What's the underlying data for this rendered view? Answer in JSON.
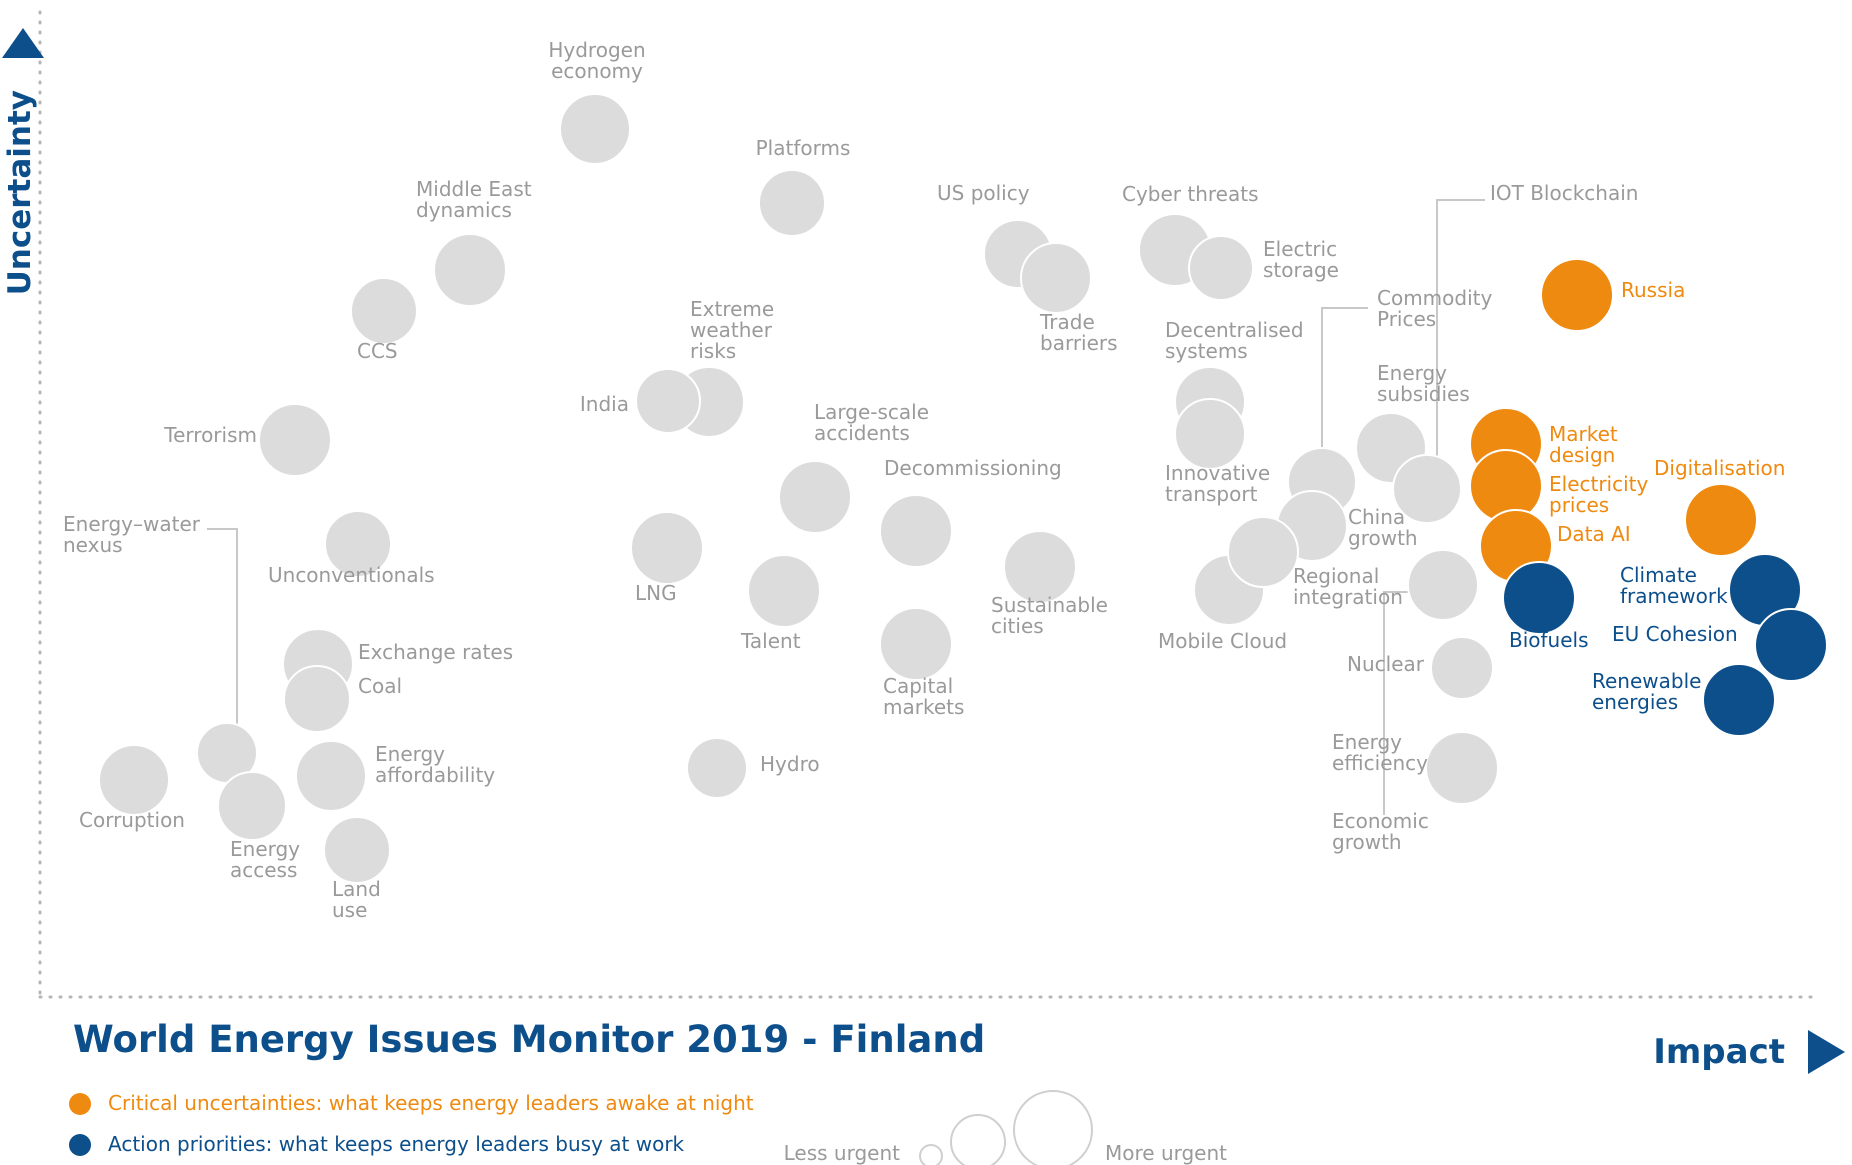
{
  "chart_data": {
    "type": "scatter",
    "title": "World Energy Issues Monitor 2019 - Finland",
    "xlabel": "Impact",
    "ylabel": "Uncertainty",
    "grid": false,
    "colors": {
      "grey": "#dcdcdc",
      "orange": "#ef8a10",
      "blue": "#0d4f8b",
      "text_grey": "#9a9a9a",
      "title": "#0d4f8b"
    },
    "legend": {
      "critical": "Critical uncertainties: what keeps energy leaders awake at night",
      "action": "Action priorities: what keeps energy leaders busy at work",
      "less_urgent": "Less urgent",
      "more_urgent": "More urgent"
    },
    "issues": [
      {
        "name": "Hydrogen economy",
        "label": [
          "Hydrogen",
          "economy"
        ],
        "impact": 595,
        "uncertainty": 129,
        "urgency": 35,
        "group": "grey"
      },
      {
        "name": "Platforms",
        "label": [
          "Platforms"
        ],
        "impact": 792,
        "uncertainty": 203,
        "urgency": 33,
        "group": "grey"
      },
      {
        "name": "US policy",
        "label": [
          "US policy"
        ],
        "impact": 1018,
        "uncertainty": 254,
        "urgency": 34,
        "group": "grey"
      },
      {
        "name": "Trade barriers",
        "label": [
          "Trade",
          "barriers"
        ],
        "impact": 1056,
        "uncertainty": 278,
        "urgency": 35,
        "group": "grey"
      },
      {
        "name": "Cyber threats",
        "label": [
          "Cyber threats"
        ],
        "impact": 1175,
        "uncertainty": 250,
        "urgency": 36,
        "group": "grey"
      },
      {
        "name": "Electric storage",
        "label": [
          "Electric",
          "storage"
        ],
        "impact": 1221,
        "uncertainty": 268,
        "urgency": 32,
        "group": "grey"
      },
      {
        "name": "Middle East dynamics",
        "label": [
          "Middle East",
          "dynamics"
        ],
        "impact": 470,
        "uncertainty": 270,
        "urgency": 36,
        "group": "grey"
      },
      {
        "name": "CCS",
        "label": [
          "CCS"
        ],
        "impact": 384,
        "uncertainty": 311,
        "urgency": 33,
        "group": "grey"
      },
      {
        "name": "Extreme weather risks",
        "label": [
          "Extreme",
          "weather",
          "risks"
        ],
        "impact": 709,
        "uncertainty": 402,
        "urgency": 35,
        "group": "grey"
      },
      {
        "name": "India",
        "label": [
          "India"
        ],
        "impact": 668,
        "uncertainty": 401,
        "urgency": 32,
        "group": "grey"
      },
      {
        "name": "Decentralised systems",
        "label": [
          "Decentralised",
          "systems"
        ],
        "impact": 1210,
        "uncertainty": 402,
        "urgency": 35,
        "group": "grey"
      },
      {
        "name": "Innovative transport",
        "label": [
          "Innovative",
          "transport"
        ],
        "impact": 1210,
        "uncertainty": 434,
        "urgency": 35,
        "group": "grey"
      },
      {
        "name": "Terrorism",
        "label": [
          "Terrorism"
        ],
        "impact": 295,
        "uncertainty": 440,
        "urgency": 36,
        "group": "grey"
      },
      {
        "name": "Large-scale accidents",
        "label": [
          "Large-scale",
          "accidents"
        ],
        "impact": 815,
        "uncertainty": 497,
        "urgency": 36,
        "group": "grey"
      },
      {
        "name": "Decommissioning",
        "label": [
          "Decommissioning"
        ],
        "impact": 916,
        "uncertainty": 531,
        "urgency": 36,
        "group": "grey"
      },
      {
        "name": "Unconventionals",
        "label": [
          "Unconventionals"
        ],
        "impact": 358,
        "uncertainty": 544,
        "urgency": 33,
        "group": "grey"
      },
      {
        "name": "LNG",
        "label": [
          "LNG"
        ],
        "impact": 667,
        "uncertainty": 548,
        "urgency": 36,
        "group": "grey"
      },
      {
        "name": "Talent",
        "label": [
          "Talent"
        ],
        "impact": 784,
        "uncertainty": 591,
        "urgency": 36,
        "group": "grey"
      },
      {
        "name": "Sustainable cities",
        "label": [
          "Sustainable",
          "cities"
        ],
        "impact": 1040,
        "uncertainty": 567,
        "urgency": 36,
        "group": "grey"
      },
      {
        "name": "Capital markets",
        "label": [
          "Capital",
          "markets"
        ],
        "impact": 916,
        "uncertainty": 644,
        "urgency": 36,
        "group": "grey"
      },
      {
        "name": "Exchange rates",
        "label": [
          "Exchange rates"
        ],
        "impact": 318,
        "uncertainty": 664,
        "urgency": 35,
        "group": "grey"
      },
      {
        "name": "Coal",
        "label": [
          "Coal"
        ],
        "impact": 317,
        "uncertainty": 699,
        "urgency": 33,
        "group": "grey"
      },
      {
        "name": "Energy-water nexus",
        "label": [
          "Energy–water",
          "nexus"
        ],
        "impact": 227,
        "uncertainty": 753,
        "urgency": 30,
        "group": "grey"
      },
      {
        "name": "Energy affordability",
        "label": [
          "Energy",
          "affordability"
        ],
        "impact": 331,
        "uncertainty": 776,
        "urgency": 35,
        "group": "grey"
      },
      {
        "name": "Corruption",
        "label": [
          "Corruption"
        ],
        "impact": 134,
        "uncertainty": 780,
        "urgency": 35,
        "group": "grey"
      },
      {
        "name": "Energy access",
        "label": [
          "Energy",
          "access"
        ],
        "impact": 252,
        "uncertainty": 806,
        "urgency": 34,
        "group": "grey"
      },
      {
        "name": "Land use",
        "label": [
          "Land",
          "use"
        ],
        "impact": 357,
        "uncertainty": 850,
        "urgency": 33,
        "group": "grey"
      },
      {
        "name": "Hydro",
        "label": [
          "Hydro"
        ],
        "impact": 717,
        "uncertainty": 768,
        "urgency": 30,
        "group": "grey"
      },
      {
        "name": "Mobile Cloud",
        "label": [
          "Mobile Cloud"
        ],
        "impact": 1229,
        "uncertainty": 590,
        "urgency": 35,
        "group": "grey"
      },
      {
        "name": "Commodity Prices",
        "label": [
          "Commodity",
          "Prices"
        ],
        "impact": 1322,
        "uncertainty": 482,
        "urgency": 34,
        "group": "grey"
      },
      {
        "name": "Energy subsidies",
        "label": [
          "Energy",
          "subsidies"
        ],
        "impact": 1391,
        "uncertainty": 448,
        "urgency": 35,
        "group": "grey"
      },
      {
        "name": "IOT Blockchain",
        "label": [
          "IOT Blockchain"
        ],
        "impact": 1427,
        "uncertainty": 489,
        "urgency": 34,
        "group": "grey"
      },
      {
        "name": "China growth",
        "label": [
          "China",
          "growth"
        ],
        "impact": 1312,
        "uncertainty": 526,
        "urgency": 35,
        "group": "grey"
      },
      {
        "name": "Regional integration",
        "label": [
          "Regional",
          "integration"
        ],
        "impact": 1263,
        "uncertainty": 552,
        "urgency": 35,
        "group": "grey"
      },
      {
        "name": "Nuclear",
        "label": [
          "Nuclear"
        ],
        "impact": 1443,
        "uncertainty": 585,
        "urgency": 35,
        "group": "grey"
      },
      {
        "name": "Energy efficiency",
        "label": [
          "Energy",
          "efficiency"
        ],
        "impact": 1462,
        "uncertainty": 668,
        "urgency": 31,
        "group": "grey"
      },
      {
        "name": "Economic growth",
        "label": [
          "Economic",
          "growth"
        ],
        "impact": 1462,
        "uncertainty": 768,
        "urgency": 36,
        "group": "grey"
      },
      {
        "name": "Russia",
        "label": [
          "Russia"
        ],
        "impact": 1577,
        "uncertainty": 295,
        "urgency": 36,
        "group": "orange"
      },
      {
        "name": "Market design",
        "label": [
          "Market",
          "design"
        ],
        "impact": 1506,
        "uncertainty": 444,
        "urgency": 36,
        "group": "orange"
      },
      {
        "name": "Electricity prices",
        "label": [
          "Electricity",
          "prices"
        ],
        "impact": 1506,
        "uncertainty": 486,
        "urgency": 36,
        "group": "orange"
      },
      {
        "name": "Data AI",
        "label": [
          "Data AI"
        ],
        "impact": 1516,
        "uncertainty": 546,
        "urgency": 36,
        "group": "orange"
      },
      {
        "name": "Digitalisation",
        "label": [
          "Digitalisation"
        ],
        "impact": 1721,
        "uncertainty": 520,
        "urgency": 36,
        "group": "orange"
      },
      {
        "name": "Biofuels",
        "label": [
          "Biofuels"
        ],
        "impact": 1539,
        "uncertainty": 598,
        "urgency": 36,
        "group": "blue"
      },
      {
        "name": "Climate framework",
        "label": [
          "Climate",
          "framework"
        ],
        "impact": 1765,
        "uncertainty": 590,
        "urgency": 36,
        "group": "blue"
      },
      {
        "name": "EU Cohesion",
        "label": [
          "EU Cohesion"
        ],
        "impact": 1791,
        "uncertainty": 645,
        "urgency": 36,
        "group": "blue"
      },
      {
        "name": "Renewable energies",
        "label": [
          "Renewable",
          "energies"
        ],
        "impact": 1739,
        "uncertainty": 700,
        "urgency": 36,
        "group": "blue"
      }
    ]
  }
}
